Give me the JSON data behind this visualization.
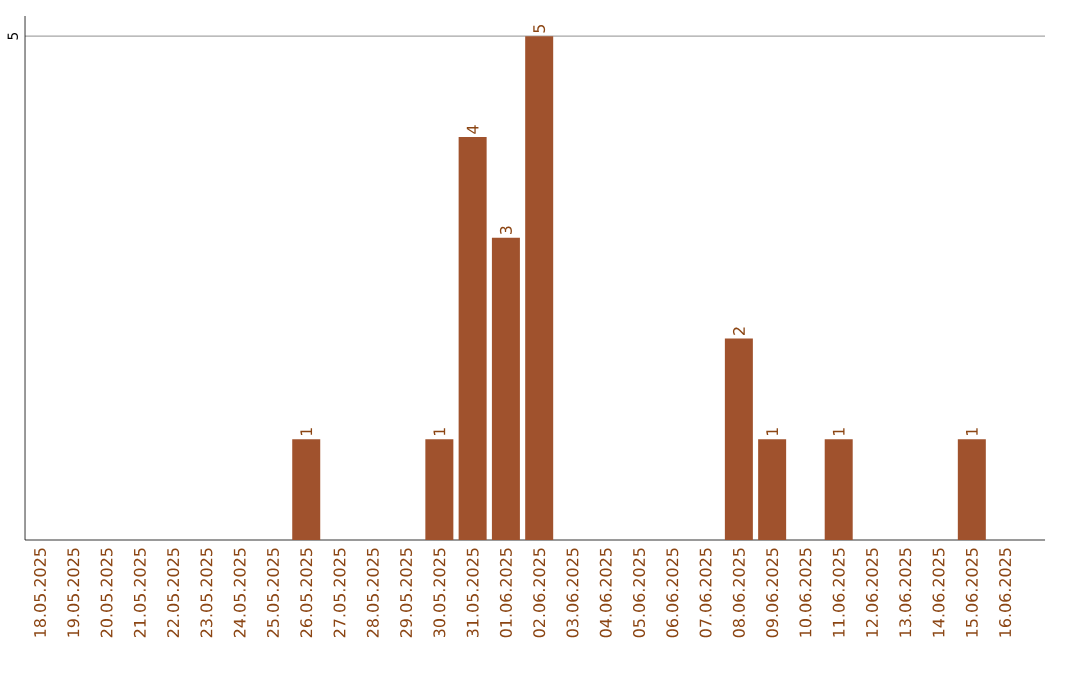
{
  "chart_data": {
    "type": "bar",
    "categories": [
      "18.05.2025",
      "19.05.2025",
      "20.05.2025",
      "21.05.2025",
      "22.05.2025",
      "23.05.2025",
      "24.05.2025",
      "25.05.2025",
      "26.05.2025",
      "27.05.2025",
      "28.05.2025",
      "29.05.2025",
      "30.05.2025",
      "31.05.2025",
      "01.06.2025",
      "02.06.2025",
      "03.06.2025",
      "04.06.2025",
      "05.06.2025",
      "06.06.2025",
      "07.06.2025",
      "08.06.2025",
      "09.06.2025",
      "10.06.2025",
      "11.06.2025",
      "12.06.2025",
      "13.06.2025",
      "14.06.2025",
      "15.06.2025",
      "16.06.2025"
    ],
    "values": [
      0,
      0,
      0,
      0,
      0,
      0,
      0,
      0,
      1,
      0,
      0,
      0,
      1,
      4,
      3,
      5,
      0,
      0,
      0,
      0,
      0,
      2,
      1,
      0,
      1,
      0,
      0,
      0,
      1,
      0
    ],
    "value_labels": [
      null,
      null,
      null,
      null,
      null,
      null,
      null,
      null,
      "1",
      null,
      null,
      null,
      "1",
      "4",
      "3",
      "5",
      null,
      null,
      null,
      null,
      null,
      "2",
      "1",
      null,
      "1",
      null,
      null,
      null,
      "1",
      null
    ],
    "color": "#a0522d",
    "ylim": [
      0,
      5.2
    ],
    "yticks": [
      5
    ],
    "grid": "y"
  }
}
